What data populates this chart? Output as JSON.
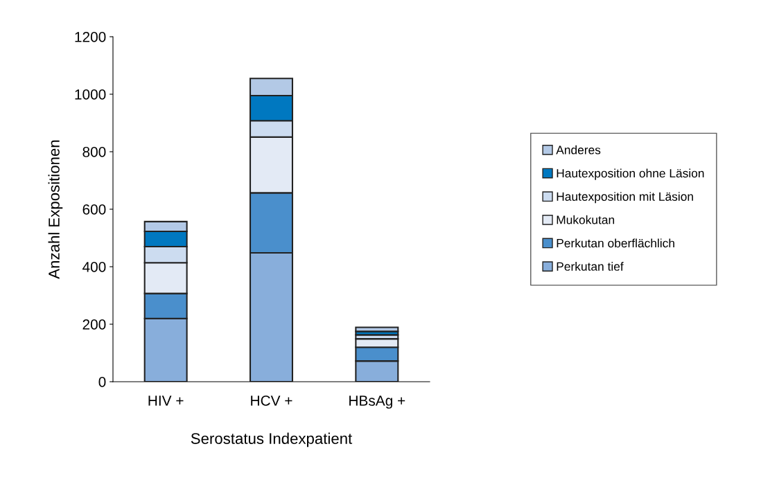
{
  "chart_data": {
    "type": "bar",
    "stacked": true,
    "xlabel": "Serostatus Indexpatient",
    "ylabel": "Anzahl Expositionen",
    "categories": [
      "HIV +",
      "HCV +",
      "HBsAg +"
    ],
    "series": [
      {
        "name": "Perkutan tief",
        "color": "#88aedb",
        "values": [
          220,
          448,
          72
        ]
      },
      {
        "name": "Perkutan oberflächlich",
        "color": "#4a8fcc",
        "values": [
          87,
          209,
          48
        ]
      },
      {
        "name": "Mukokutan",
        "color": "#e3eaf5",
        "values": [
          107,
          194,
          29
        ]
      },
      {
        "name": "Hautexposition mit Läsion",
        "color": "#ccdcf0",
        "values": [
          56,
          57,
          14
        ]
      },
      {
        "name": "Hautexposition ohne Läsion",
        "color": "#0078c0",
        "values": [
          53,
          87,
          12
        ]
      },
      {
        "name": "Anderes",
        "color": "#b3c9e6",
        "values": [
          34,
          60,
          14
        ]
      }
    ],
    "ylim": [
      0,
      1200
    ],
    "yticks": [
      0,
      200,
      400,
      600,
      800,
      1000,
      1200
    ],
    "grid": false,
    "legend": "right"
  }
}
